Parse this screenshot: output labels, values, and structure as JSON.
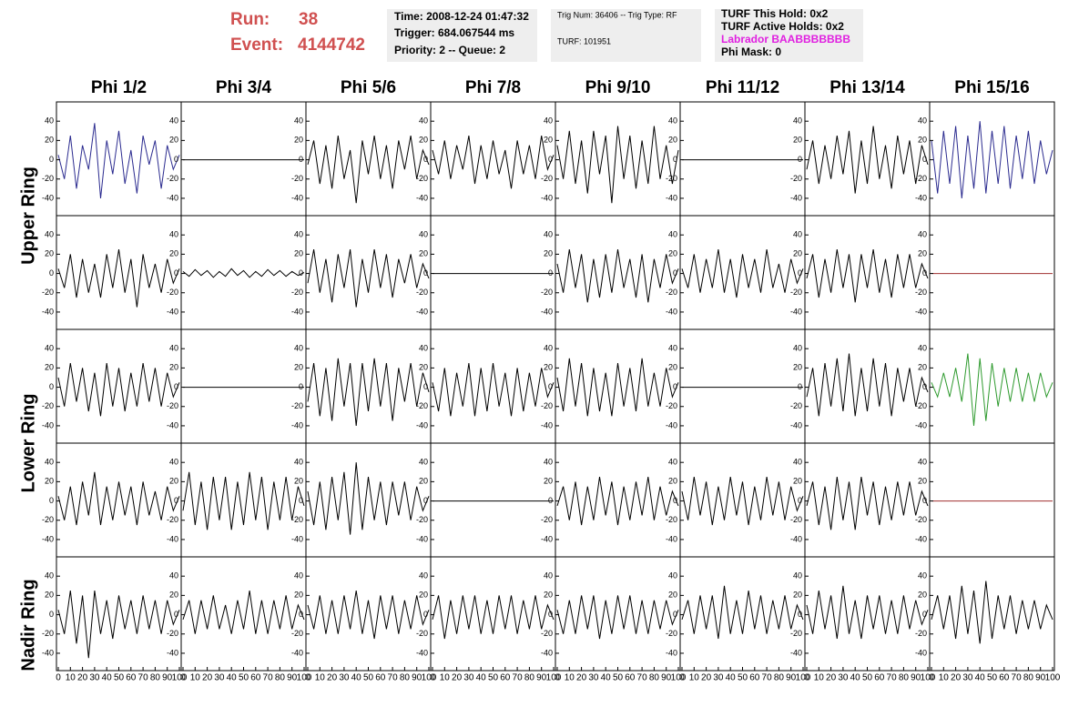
{
  "header": {
    "run_label": "Run:",
    "run": "38",
    "event_label": "Event:",
    "event": "4144742",
    "box1": [
      "Time: 2008-12-24 01:47:32",
      "Trigger: 684.067544 ms",
      "Priority: 2 -- Queue: 2"
    ],
    "box2": [
      "Trig Num: 36406 -- Trig Type: RF",
      "TURF: 101951"
    ],
    "box3": [
      "TURF This Hold: 0x2",
      "TURF Active Holds: 0x2",
      "Labrador BAABBBBBBB",
      "Phi Mask: 0"
    ]
  },
  "chart_data": {
    "type": "line",
    "columns": [
      "Phi 1/2",
      "Phi 3/4",
      "Phi 5/6",
      "Phi 7/8",
      "Phi 9/10",
      "Phi 11/12",
      "Phi 13/14",
      "Phi 15/16"
    ],
    "ring_labels": [
      "Upper Ring",
      "Lower Ring",
      "Nadir Ring"
    ],
    "xlim": [
      0,
      100
    ],
    "xticks": [
      0,
      10,
      20,
      30,
      40,
      50,
      60,
      70,
      80,
      90,
      100
    ],
    "ylim": [
      -58,
      60
    ],
    "yticks": [
      -40,
      -20,
      0,
      20,
      40
    ],
    "x": [
      0,
      5,
      10,
      15,
      20,
      25,
      30,
      35,
      40,
      45,
      50,
      55,
      60,
      65,
      70,
      75,
      80,
      85,
      90,
      95,
      100
    ],
    "panels": [
      [
        {
          "color": "#2b2b8f",
          "values": [
            5,
            -20,
            25,
            -30,
            15,
            -10,
            38,
            -40,
            20,
            -15,
            30,
            -25,
            10,
            -35,
            25,
            -5,
            20,
            -30,
            15,
            -10,
            5
          ]
        },
        {
          "color": "#000000",
          "values": [
            0,
            0,
            0,
            0,
            0,
            0,
            0,
            0,
            0,
            0,
            0,
            0,
            0,
            0,
            0,
            0,
            0,
            0,
            0,
            0,
            0
          ]
        },
        {
          "color": "#000000",
          "values": [
            -5,
            20,
            -25,
            15,
            -30,
            25,
            -20,
            10,
            -45,
            20,
            -15,
            25,
            -20,
            15,
            -30,
            20,
            -10,
            25,
            -20,
            10,
            -5
          ]
        },
        {
          "color": "#000000",
          "values": [
            10,
            -15,
            20,
            -20,
            15,
            -10,
            25,
            -25,
            15,
            -20,
            20,
            -15,
            10,
            -30,
            20,
            -15,
            15,
            -20,
            25,
            -10,
            5
          ]
        },
        {
          "color": "#000000",
          "values": [
            15,
            -20,
            30,
            -25,
            20,
            -35,
            30,
            -15,
            25,
            -45,
            35,
            -20,
            25,
            -30,
            20,
            -25,
            35,
            -20,
            15,
            -25,
            10
          ]
        },
        {
          "color": "#000000",
          "values": [
            0,
            0,
            0,
            0,
            0,
            0,
            0,
            0,
            0,
            0,
            0,
            0,
            0,
            0,
            0,
            0,
            0,
            0,
            0,
            0,
            0
          ]
        },
        {
          "color": "#000000",
          "values": [
            -10,
            20,
            -25,
            15,
            -20,
            25,
            -15,
            30,
            -35,
            20,
            -25,
            35,
            -20,
            15,
            -30,
            25,
            -15,
            20,
            -25,
            15,
            -5
          ]
        },
        {
          "color": "#2b2b8f",
          "values": [
            20,
            -35,
            30,
            -25,
            35,
            -40,
            25,
            -30,
            40,
            -35,
            30,
            -25,
            35,
            -30,
            25,
            -20,
            30,
            -25,
            20,
            -15,
            10
          ]
        }
      ],
      [
        {
          "color": "#000000",
          "values": [
            5,
            -15,
            20,
            -25,
            15,
            -20,
            10,
            -25,
            20,
            -15,
            25,
            -20,
            15,
            -35,
            20,
            -15,
            10,
            -20,
            15,
            -10,
            5
          ]
        },
        {
          "color": "#000000",
          "values": [
            2,
            -3,
            4,
            -2,
            3,
            -4,
            2,
            -3,
            5,
            -2,
            3,
            -4,
            2,
            -3,
            4,
            -2,
            3,
            -3,
            2,
            -2,
            1
          ]
        },
        {
          "color": "#000000",
          "values": [
            -10,
            25,
            -20,
            15,
            -30,
            20,
            -15,
            25,
            -35,
            15,
            -20,
            25,
            -15,
            20,
            -25,
            15,
            -10,
            20,
            -15,
            10,
            -5
          ]
        },
        {
          "color": "#000000",
          "values": [
            0,
            0,
            0,
            0,
            0,
            0,
            0,
            0,
            0,
            0,
            0,
            0,
            0,
            0,
            0,
            0,
            0,
            0,
            0,
            0,
            0
          ]
        },
        {
          "color": "#000000",
          "values": [
            10,
            -20,
            25,
            -15,
            20,
            -30,
            15,
            -25,
            20,
            -20,
            25,
            -15,
            15,
            -25,
            20,
            -30,
            15,
            -15,
            20,
            -10,
            5
          ]
        },
        {
          "color": "#000000",
          "values": [
            5,
            -15,
            20,
            -20,
            15,
            -15,
            25,
            -20,
            15,
            -25,
            20,
            -15,
            15,
            -20,
            25,
            -15,
            10,
            -20,
            15,
            -10,
            5
          ]
        },
        {
          "color": "#000000",
          "values": [
            -5,
            20,
            -25,
            15,
            -20,
            25,
            -15,
            20,
            -30,
            20,
            -15,
            25,
            -20,
            15,
            -25,
            20,
            -15,
            20,
            -15,
            10,
            -5
          ]
        },
        {
          "color": "#a03030",
          "values": [
            0,
            0,
            0,
            0,
            0,
            0,
            0,
            0,
            0,
            0,
            0,
            0,
            0,
            0,
            0,
            0,
            0,
            0,
            0,
            0,
            0
          ]
        }
      ],
      [
        {
          "color": "#000000",
          "values": [
            10,
            -20,
            25,
            -15,
            20,
            -25,
            15,
            -30,
            25,
            -20,
            20,
            -25,
            15,
            -20,
            25,
            -15,
            20,
            -20,
            15,
            -10,
            5
          ]
        },
        {
          "color": "#000000",
          "values": [
            0,
            0,
            0,
            0,
            0,
            0,
            0,
            0,
            0,
            0,
            0,
            0,
            0,
            0,
            0,
            0,
            0,
            0,
            0,
            0,
            0
          ]
        },
        {
          "color": "#000000",
          "values": [
            -15,
            25,
            -30,
            20,
            -35,
            30,
            -20,
            25,
            -40,
            25,
            -25,
            30,
            -20,
            25,
            -35,
            20,
            -15,
            25,
            -20,
            15,
            -5
          ]
        },
        {
          "color": "#000000",
          "values": [
            5,
            -25,
            20,
            -30,
            15,
            -20,
            25,
            -30,
            20,
            -25,
            25,
            -20,
            15,
            -30,
            20,
            -25,
            15,
            -20,
            20,
            -10,
            5
          ]
        },
        {
          "color": "#000000",
          "values": [
            10,
            -25,
            30,
            -20,
            25,
            -30,
            20,
            -25,
            15,
            -30,
            25,
            -20,
            20,
            -25,
            30,
            -20,
            15,
            -20,
            20,
            -10,
            5
          ]
        },
        {
          "color": "#000000",
          "values": [
            0,
            0,
            0,
            0,
            0,
            0,
            0,
            0,
            0,
            0,
            0,
            0,
            0,
            0,
            0,
            0,
            0,
            0,
            0,
            0,
            0
          ]
        },
        {
          "color": "#000000",
          "values": [
            -10,
            20,
            -30,
            25,
            -20,
            30,
            -25,
            35,
            -30,
            20,
            -25,
            30,
            -20,
            25,
            -30,
            20,
            -15,
            20,
            -20,
            10,
            -5
          ]
        },
        {
          "color": "#2e9a2e",
          "values": [
            5,
            -10,
            15,
            -10,
            20,
            -15,
            35,
            -40,
            30,
            -35,
            25,
            -20,
            20,
            -15,
            20,
            -15,
            15,
            -15,
            15,
            -10,
            5
          ]
        }
      ],
      [
        {
          "color": "#000000",
          "values": [
            5,
            -20,
            15,
            -25,
            20,
            -15,
            30,
            -25,
            15,
            -20,
            20,
            -15,
            15,
            -25,
            20,
            -15,
            10,
            -20,
            15,
            -10,
            5
          ]
        },
        {
          "color": "#000000",
          "values": [
            -10,
            30,
            -25,
            20,
            -30,
            25,
            -20,
            25,
            -30,
            20,
            -25,
            30,
            -20,
            25,
            -30,
            20,
            -20,
            25,
            -20,
            15,
            -5
          ]
        },
        {
          "color": "#000000",
          "values": [
            10,
            -25,
            20,
            -30,
            25,
            -20,
            30,
            -35,
            40,
            -30,
            25,
            -20,
            20,
            -25,
            20,
            -15,
            20,
            -20,
            15,
            -10,
            5
          ]
        },
        {
          "color": "#000000",
          "values": [
            0,
            0,
            0,
            0,
            0,
            0,
            0,
            0,
            0,
            0,
            0,
            0,
            0,
            0,
            0,
            0,
            0,
            0,
            0,
            0,
            0
          ]
        },
        {
          "color": "#000000",
          "values": [
            -5,
            15,
            -20,
            20,
            -25,
            15,
            -20,
            25,
            -15,
            20,
            -25,
            15,
            -20,
            20,
            -15,
            25,
            -20,
            15,
            -15,
            10,
            -5
          ]
        },
        {
          "color": "#000000",
          "values": [
            10,
            -20,
            25,
            -15,
            20,
            -25,
            15,
            -20,
            25,
            -15,
            20,
            -25,
            15,
            -20,
            25,
            -15,
            20,
            -20,
            15,
            -10,
            5
          ]
        },
        {
          "color": "#000000",
          "values": [
            -5,
            20,
            -25,
            15,
            -30,
            25,
            -20,
            20,
            -30,
            25,
            -15,
            20,
            -25,
            15,
            -20,
            20,
            -15,
            20,
            -15,
            10,
            -5
          ]
        },
        {
          "color": "#a03030",
          "values": [
            0,
            0,
            0,
            0,
            0,
            0,
            0,
            0,
            0,
            0,
            0,
            0,
            0,
            0,
            0,
            0,
            0,
            0,
            0,
            0,
            0
          ]
        }
      ],
      [
        {
          "color": "#000000",
          "values": [
            5,
            -20,
            25,
            -30,
            20,
            -45,
            25,
            -20,
            15,
            -25,
            20,
            -15,
            15,
            -20,
            20,
            -15,
            15,
            -20,
            15,
            -10,
            5
          ]
        },
        {
          "color": "#000000",
          "values": [
            -5,
            15,
            -20,
            15,
            -15,
            20,
            -15,
            10,
            -20,
            15,
            -15,
            25,
            -20,
            15,
            -20,
            15,
            -15,
            20,
            -15,
            10,
            -5
          ]
        },
        {
          "color": "#000000",
          "values": [
            10,
            -15,
            20,
            -20,
            15,
            -20,
            20,
            -15,
            25,
            -20,
            15,
            -25,
            20,
            -15,
            20,
            -20,
            15,
            -15,
            20,
            -10,
            5
          ]
        },
        {
          "color": "#000000",
          "values": [
            -5,
            20,
            -25,
            15,
            -20,
            20,
            -15,
            20,
            -20,
            15,
            -20,
            20,
            -15,
            20,
            -20,
            15,
            -15,
            20,
            -15,
            10,
            -5
          ]
        },
        {
          "color": "#000000",
          "values": [
            5,
            -20,
            15,
            -20,
            20,
            -15,
            20,
            -25,
            15,
            -20,
            20,
            -15,
            20,
            -20,
            15,
            -20,
            15,
            -15,
            15,
            -10,
            5
          ]
        },
        {
          "color": "#000000",
          "values": [
            -5,
            15,
            -20,
            20,
            -15,
            20,
            -25,
            30,
            -20,
            15,
            -20,
            25,
            -15,
            20,
            -20,
            15,
            -15,
            20,
            -15,
            10,
            -5
          ]
        },
        {
          "color": "#000000",
          "values": [
            10,
            -20,
            25,
            -15,
            20,
            -25,
            30,
            -20,
            15,
            -25,
            20,
            -15,
            20,
            -20,
            15,
            -20,
            20,
            -15,
            15,
            -10,
            5
          ]
        },
        {
          "color": "#000000",
          "values": [
            -5,
            20,
            -15,
            20,
            -25,
            30,
            -20,
            25,
            -30,
            35,
            -25,
            20,
            -15,
            20,
            -20,
            15,
            -15,
            15,
            -15,
            10,
            -5
          ]
        }
      ]
    ]
  }
}
